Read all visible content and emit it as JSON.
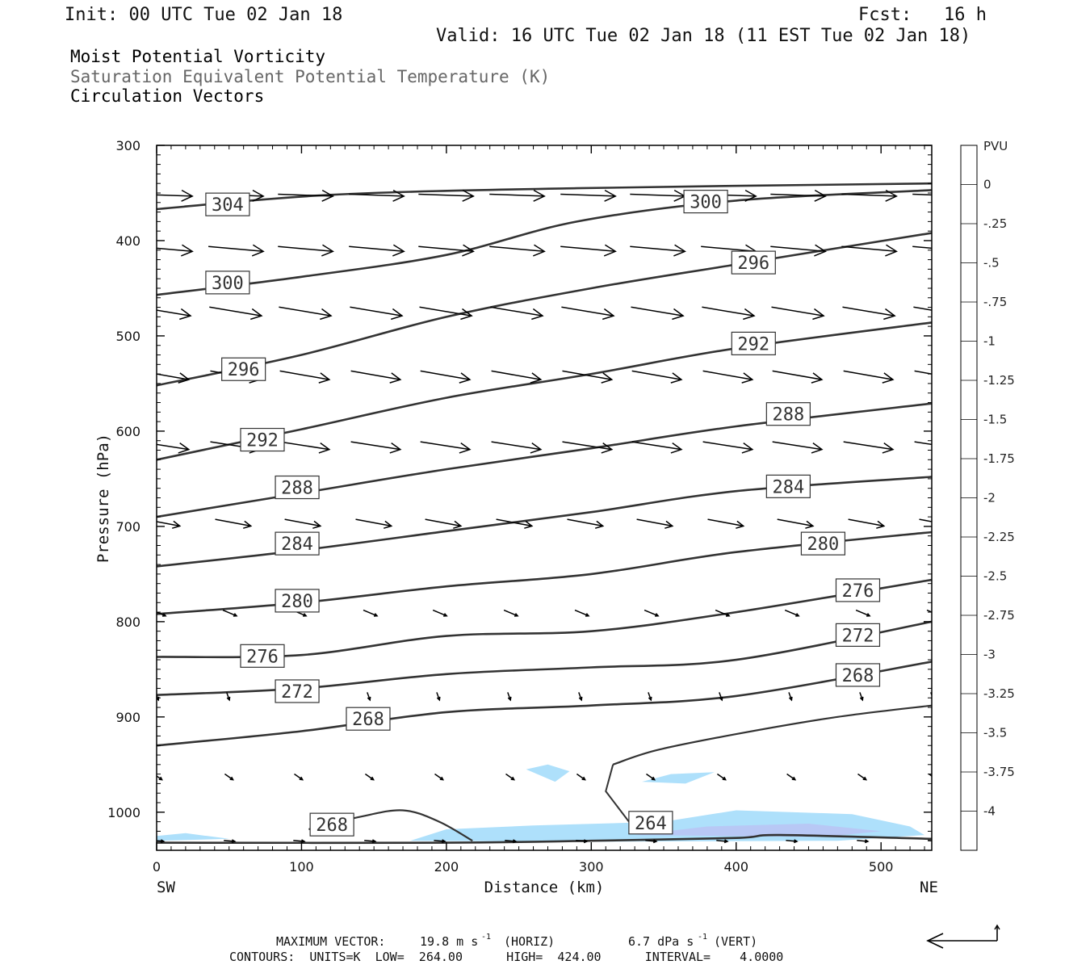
{
  "header": {
    "init": "Init: 00 UTC Tue 02 Jan 18",
    "fcst": "Fcst:   16 h",
    "valid": "Valid: 16 UTC Tue 02 Jan 18 (11 EST Tue 02 Jan 18)",
    "title1": "Moist Potential Vorticity",
    "title2": "Saturation Equivalent Potential Temperature (K)",
    "title3": "Circulation Vectors"
  },
  "colors": {
    "contour": "#333333",
    "vector": "#000000",
    "fill_light": "#aee0fb",
    "fill_mid": "#b8c8f5",
    "fill_dark": "#9aa6f0",
    "title2": "#666666"
  },
  "chart_data": {
    "type": "cross-section",
    "title": "Moist Potential Vorticity / Saturation Equivalent Potential Temperature (K) / Circulation Vectors",
    "xlabel": "Distance (km)",
    "ylabel": "Pressure (hPa)",
    "xlim": [
      0,
      535
    ],
    "ylim": [
      1040,
      300
    ],
    "x_ticks": [
      0,
      100,
      200,
      300,
      400,
      500
    ],
    "y_ticks": [
      300,
      400,
      500,
      600,
      700,
      800,
      900,
      1000
    ],
    "x_end_labels": {
      "left": "SW",
      "right": "NE"
    },
    "contours": [
      {
        "label": "304",
        "points": [
          [
            0,
            367
          ],
          [
            120,
            352
          ],
          [
            290,
            345
          ],
          [
            535,
            340
          ]
        ]
      },
      {
        "label": "300",
        "points": [
          [
            0,
            457
          ],
          [
            100,
            438
          ],
          [
            200,
            415
          ],
          [
            290,
            380
          ],
          [
            400,
            358
          ],
          [
            535,
            347
          ]
        ]
      },
      {
        "label": "296",
        "points": [
          [
            0,
            552
          ],
          [
            100,
            520
          ],
          [
            200,
            480
          ],
          [
            300,
            450
          ],
          [
            400,
            425
          ],
          [
            535,
            392
          ]
        ]
      },
      {
        "label": "292",
        "points": [
          [
            0,
            630
          ],
          [
            100,
            598
          ],
          [
            200,
            565
          ],
          [
            300,
            540
          ],
          [
            400,
            513
          ],
          [
            535,
            486
          ]
        ]
      },
      {
        "label": "288",
        "points": [
          [
            0,
            690
          ],
          [
            100,
            665
          ],
          [
            200,
            640
          ],
          [
            300,
            618
          ],
          [
            400,
            595
          ],
          [
            535,
            571
          ]
        ]
      },
      {
        "label": "284",
        "points": [
          [
            0,
            742
          ],
          [
            100,
            725
          ],
          [
            200,
            705
          ],
          [
            300,
            685
          ],
          [
            400,
            663
          ],
          [
            535,
            648
          ]
        ]
      },
      {
        "label": "280",
        "points": [
          [
            0,
            792
          ],
          [
            100,
            780
          ],
          [
            200,
            763
          ],
          [
            300,
            750
          ],
          [
            400,
            727
          ],
          [
            535,
            706
          ]
        ]
      },
      {
        "label": "276",
        "points": [
          [
            0,
            837
          ],
          [
            100,
            835
          ],
          [
            200,
            815
          ],
          [
            300,
            810
          ],
          [
            400,
            790
          ],
          [
            535,
            756
          ]
        ]
      },
      {
        "label": "272",
        "points": [
          [
            0,
            877
          ],
          [
            100,
            870
          ],
          [
            200,
            855
          ],
          [
            300,
            848
          ],
          [
            400,
            840
          ],
          [
            535,
            800
          ]
        ]
      },
      {
        "label": "268",
        "points": [
          [
            0,
            930
          ],
          [
            100,
            915
          ],
          [
            200,
            895
          ],
          [
            300,
            888
          ],
          [
            400,
            878
          ],
          [
            535,
            842
          ]
        ]
      },
      {
        "label": "264",
        "points": [
          [
            0,
            1032
          ],
          [
            200,
            1032
          ],
          [
            300,
            1030
          ],
          [
            400,
            1027
          ],
          [
            430,
            1024
          ],
          [
            535,
            1028
          ]
        ]
      }
    ],
    "contour_labels": [
      {
        "text": "304",
        "x": 49,
        "p": 362
      },
      {
        "text": "300",
        "x": 379,
        "p": 359
      },
      {
        "text": "300",
        "x": 49,
        "p": 444
      },
      {
        "text": "296",
        "x": 412,
        "p": 423
      },
      {
        "text": "296",
        "x": 60,
        "p": 535
      },
      {
        "text": "292",
        "x": 412,
        "p": 508
      },
      {
        "text": "292",
        "x": 73,
        "p": 609
      },
      {
        "text": "288",
        "x": 436,
        "p": 582
      },
      {
        "text": "288",
        "x": 97,
        "p": 659
      },
      {
        "text": "284",
        "x": 436,
        "p": 658
      },
      {
        "text": "284",
        "x": 97,
        "p": 718
      },
      {
        "text": "280",
        "x": 460,
        "p": 718
      },
      {
        "text": "280",
        "x": 97,
        "p": 778
      },
      {
        "text": "276",
        "x": 484,
        "p": 767
      },
      {
        "text": "276",
        "x": 73,
        "p": 836
      },
      {
        "text": "272",
        "x": 484,
        "p": 814
      },
      {
        "text": "272",
        "x": 97,
        "p": 873
      },
      {
        "text": "268",
        "x": 484,
        "p": 856
      },
      {
        "text": "268",
        "x": 146,
        "p": 902
      },
      {
        "text": "268",
        "x": 121,
        "p": 1013
      },
      {
        "text": "264",
        "x": 341,
        "p": 1011
      }
    ],
    "pv_fill_levels": [
      "0",
      "-.25",
      "-.5",
      "-.75",
      "-1",
      "-1.25",
      "-1.5",
      "-1.75",
      "-2",
      "-2.25",
      "-2.5",
      "-2.75",
      "-3",
      "-3.25",
      "-3.5",
      "-3.75",
      "-4"
    ],
    "pv_regions": [
      {
        "level": "-.25",
        "points": [
          [
            0,
            1025
          ],
          [
            20,
            1022
          ],
          [
            50,
            1028
          ],
          [
            0,
            1030
          ]
        ]
      },
      {
        "level": "-.25",
        "points": [
          [
            175,
            1030
          ],
          [
            200,
            1018
          ],
          [
            260,
            1014
          ],
          [
            350,
            1010
          ],
          [
            400,
            998
          ],
          [
            480,
            1002
          ],
          [
            520,
            1015
          ],
          [
            530,
            1024
          ],
          [
            470,
            1030
          ],
          [
            300,
            1031
          ]
        ]
      },
      {
        "level": "-.5",
        "points": [
          [
            330,
            1024
          ],
          [
            380,
            1015
          ],
          [
            450,
            1012
          ],
          [
            500,
            1020
          ],
          [
            460,
            1026
          ]
        ]
      },
      {
        "level": "-.25",
        "points": [
          [
            255,
            955
          ],
          [
            270,
            950
          ],
          [
            285,
            957
          ],
          [
            275,
            968
          ]
        ]
      },
      {
        "level": "-.25",
        "points": [
          [
            335,
            968
          ],
          [
            355,
            960
          ],
          [
            385,
            958
          ],
          [
            365,
            970
          ]
        ]
      }
    ],
    "pv_colorbar_unit": "PVU",
    "max_vector_horiz": "19.8 m s-1",
    "max_vector_vert": "6.7 dPa s-1",
    "contour_units": "K",
    "contour_low": 264.0,
    "contour_high": 424.0,
    "contour_interval": 4.0,
    "vector_rows": [
      {
        "p": 352,
        "u": 1.0,
        "w": 0.1
      },
      {
        "p": 408,
        "u": 1.0,
        "w": 0.25
      },
      {
        "p": 473,
        "u": 0.95,
        "w": 0.45
      },
      {
        "p": 540,
        "u": 0.9,
        "w": 0.45
      },
      {
        "p": 614,
        "u": 0.9,
        "w": 0.4
      },
      {
        "p": 695,
        "u": 0.65,
        "w": 0.35
      },
      {
        "p": 790,
        "u": 0.25,
        "w": 0.3
      },
      {
        "p": 877,
        "u": 0.05,
        "w": 0.4
      },
      {
        "p": 962,
        "u": 0.15,
        "w": 0.3
      },
      {
        "p": 1030,
        "u": 0.2,
        "w": 0.05
      }
    ],
    "vector_x": [
      0,
      49,
      97,
      146,
      194,
      243,
      292,
      340,
      389,
      437,
      486,
      535
    ]
  },
  "footer": {
    "max_vector_label": "MAXIMUM VECTOR:",
    "max_vector_horiz_text": "19.8 m s",
    "max_vector_horiz_unit": "(HORIZ)",
    "max_vector_vert_text": "6.7 dPa s",
    "max_vector_vert_unit": "(VERT)",
    "exponent": "-1",
    "contours_line": "CONTOURS:  UNITS=K  LOW=  264.00      HIGH=  424.00      INTERVAL=    4.0000"
  }
}
